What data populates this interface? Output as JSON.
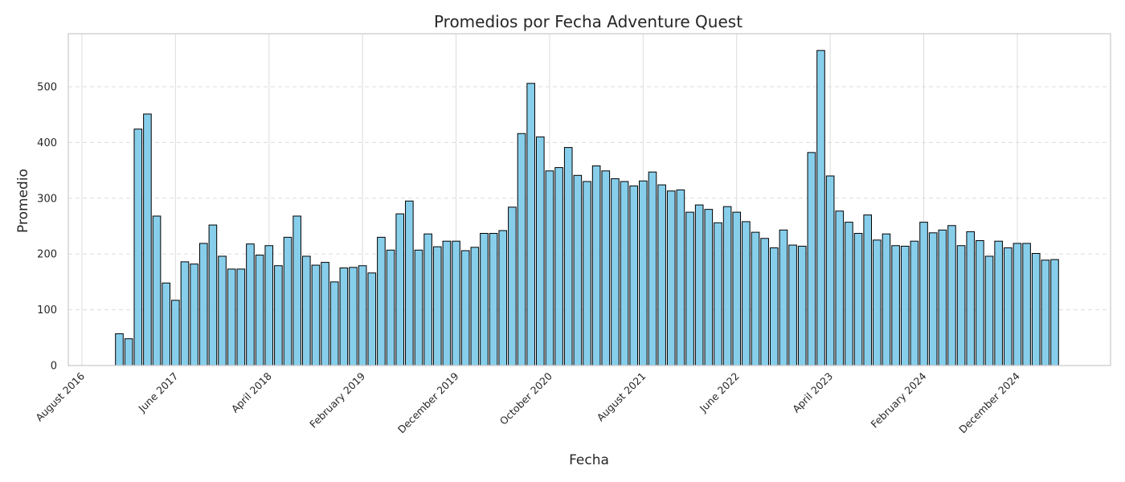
{
  "chart_data": {
    "type": "bar",
    "title": "Promedios por Fecha Adventure Quest",
    "xlabel": "Fecha",
    "ylabel": "Promedio",
    "ylim": [
      0,
      595
    ],
    "yticks": [
      0,
      100,
      200,
      300,
      400,
      500
    ],
    "grid": {
      "x": true,
      "y": true,
      "y_style": "dashed"
    },
    "x_tick_labels": [
      "August 2016",
      "June 2017",
      "April 2018",
      "February 2019",
      "December 2019",
      "October 2020",
      "August 2021",
      "June 2022",
      "April 2023",
      "February 2024",
      "December 2024"
    ],
    "x_start": "2016-08",
    "x_tick_every_months": 10,
    "first_bar": "2016-12",
    "values": [
      57,
      48,
      424,
      451,
      268,
      148,
      117,
      186,
      182,
      219,
      252,
      196,
      173,
      173,
      218,
      198,
      215,
      179,
      230,
      268,
      196,
      180,
      185,
      150,
      175,
      176,
      179,
      166,
      230,
      207,
      272,
      295,
      207,
      236,
      213,
      223,
      223,
      206,
      212,
      237,
      237,
      242,
      284,
      416,
      506,
      410,
      349,
      355,
      391,
      341,
      330,
      358,
      349,
      335,
      330,
      322,
      331,
      347,
      324,
      313,
      315,
      275,
      288,
      280,
      256,
      285,
      275,
      258,
      239,
      228,
      211,
      243,
      216,
      214,
      382,
      565,
      340,
      277,
      257,
      237,
      270,
      225,
      236,
      215,
      214,
      223,
      257,
      238,
      243,
      251,
      215,
      240,
      224,
      196,
      223,
      211,
      219,
      219,
      201,
      189,
      190
    ],
    "colors": {
      "bar_fill": "#87ceeb",
      "bar_edge": "#000000",
      "grid": "#dcdcdc",
      "frame": "#cccccc"
    }
  }
}
